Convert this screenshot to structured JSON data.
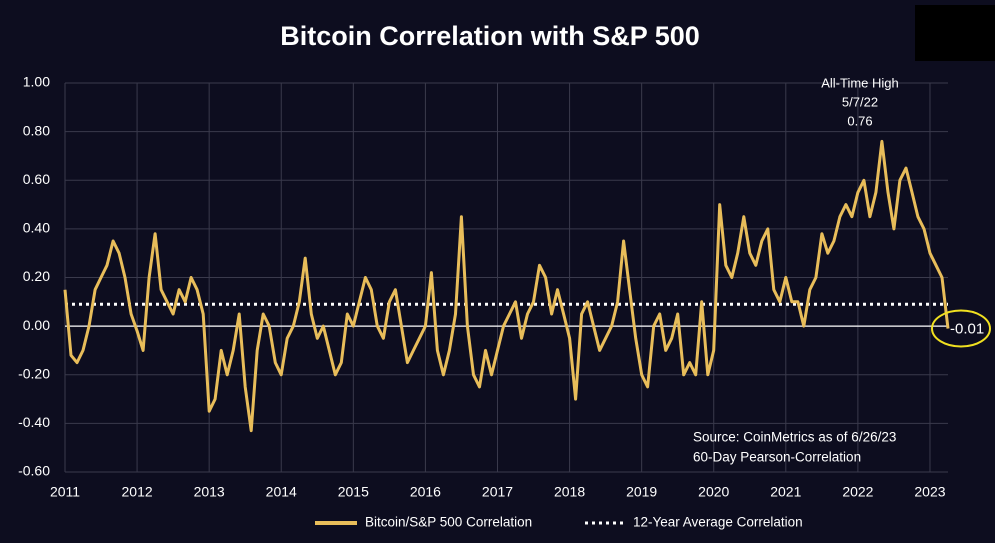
{
  "chart_data": {
    "type": "line",
    "title": "Bitcoin Correlation with S&P 500",
    "x": [
      2011,
      2011.083,
      2011.167,
      2011.25,
      2011.333,
      2011.417,
      2011.5,
      2011.583,
      2011.667,
      2011.75,
      2011.833,
      2011.917,
      2012,
      2012.083,
      2012.167,
      2012.25,
      2012.333,
      2012.417,
      2012.5,
      2012.583,
      2012.667,
      2012.75,
      2012.833,
      2012.917,
      2013,
      2013.083,
      2013.167,
      2013.25,
      2013.333,
      2013.417,
      2013.5,
      2013.583,
      2013.667,
      2013.75,
      2013.833,
      2013.917,
      2014,
      2014.083,
      2014.167,
      2014.25,
      2014.333,
      2014.417,
      2014.5,
      2014.583,
      2014.667,
      2014.75,
      2014.833,
      2014.917,
      2015,
      2015.083,
      2015.167,
      2015.25,
      2015.333,
      2015.417,
      2015.5,
      2015.583,
      2015.667,
      2015.75,
      2015.833,
      2015.917,
      2016,
      2016.083,
      2016.167,
      2016.25,
      2016.333,
      2016.417,
      2016.5,
      2016.583,
      2016.667,
      2016.75,
      2016.833,
      2016.917,
      2017,
      2017.083,
      2017.167,
      2017.25,
      2017.333,
      2017.417,
      2017.5,
      2017.583,
      2017.667,
      2017.75,
      2017.833,
      2017.917,
      2018,
      2018.083,
      2018.167,
      2018.25,
      2018.333,
      2018.417,
      2018.5,
      2018.583,
      2018.667,
      2018.75,
      2018.833,
      2018.917,
      2019,
      2019.083,
      2019.167,
      2019.25,
      2019.333,
      2019.417,
      2019.5,
      2019.583,
      2019.667,
      2019.75,
      2019.833,
      2019.917,
      2020,
      2020.083,
      2020.167,
      2020.25,
      2020.333,
      2020.417,
      2020.5,
      2020.583,
      2020.667,
      2020.75,
      2020.833,
      2020.917,
      2021,
      2021.083,
      2021.167,
      2021.25,
      2021.333,
      2021.417,
      2021.5,
      2021.583,
      2021.667,
      2021.75,
      2021.833,
      2021.917,
      2022,
      2022.083,
      2022.167,
      2022.25,
      2022.333,
      2022.417,
      2022.5,
      2022.583,
      2022.667,
      2022.75,
      2022.833,
      2022.917,
      2023,
      2023.083,
      2023.167,
      2023.25
    ],
    "series": [
      {
        "name": "Bitcoin/S&P 500 Correlation",
        "color": "#e8bd5a",
        "values": [
          0.15,
          -0.12,
          -0.15,
          -0.1,
          0.0,
          0.15,
          0.2,
          0.25,
          0.35,
          0.3,
          0.2,
          0.05,
          -0.02,
          -0.1,
          0.2,
          0.38,
          0.15,
          0.1,
          0.05,
          0.15,
          0.1,
          0.2,
          0.15,
          0.05,
          -0.35,
          -0.3,
          -0.1,
          -0.2,
          -0.1,
          0.05,
          -0.25,
          -0.43,
          -0.1,
          0.05,
          0.0,
          -0.15,
          -0.2,
          -0.05,
          0.0,
          0.1,
          0.28,
          0.05,
          -0.05,
          0.0,
          -0.1,
          -0.2,
          -0.15,
          0.05,
          0.0,
          0.1,
          0.2,
          0.15,
          0.0,
          -0.05,
          0.1,
          0.15,
          0.0,
          -0.15,
          -0.1,
          -0.05,
          0.0,
          0.22,
          -0.1,
          -0.2,
          -0.1,
          0.05,
          0.45,
          0.0,
          -0.2,
          -0.25,
          -0.1,
          -0.2,
          -0.1,
          0.0,
          0.05,
          0.1,
          -0.05,
          0.05,
          0.1,
          0.25,
          0.2,
          0.05,
          0.15,
          0.05,
          -0.05,
          -0.3,
          0.05,
          0.1,
          0.0,
          -0.1,
          -0.05,
          0.0,
          0.1,
          0.35,
          0.15,
          -0.05,
          -0.2,
          -0.25,
          0.0,
          0.05,
          -0.1,
          -0.05,
          0.05,
          -0.2,
          -0.15,
          -0.2,
          0.1,
          -0.2,
          -0.1,
          0.5,
          0.25,
          0.2,
          0.3,
          0.45,
          0.3,
          0.25,
          0.35,
          0.4,
          0.15,
          0.1,
          0.2,
          0.1,
          0.1,
          0.0,
          0.15,
          0.2,
          0.38,
          0.3,
          0.35,
          0.45,
          0.5,
          0.45,
          0.55,
          0.6,
          0.45,
          0.55,
          0.76,
          0.55,
          0.4,
          0.6,
          0.65,
          0.55,
          0.45,
          0.4,
          0.3,
          0.25,
          0.2,
          -0.01
        ]
      }
    ],
    "reference_lines": [
      {
        "name": "12-Year Average Correlation",
        "value": 0.09,
        "color": "#ffffff",
        "style": "dotted"
      }
    ],
    "zero_line": {
      "value": 0,
      "color": "#ffffff"
    },
    "xlim": [
      2011,
      2023.25
    ],
    "xticks": [
      2011,
      2012,
      2013,
      2014,
      2015,
      2016,
      2017,
      2018,
      2019,
      2020,
      2021,
      2022,
      2023
    ],
    "ylim": [
      -0.6,
      1.0
    ],
    "yticks": [
      {
        "value": -0.6,
        "label": "-0.60"
      },
      {
        "value": -0.4,
        "label": "-0.40"
      },
      {
        "value": -0.2,
        "label": "-0.20"
      },
      {
        "value": 0,
        "label": "0.00"
      },
      {
        "value": 0.2,
        "label": "0.20"
      },
      {
        "value": 0.4,
        "label": "0.40"
      },
      {
        "value": 0.6,
        "label": "0.60"
      },
      {
        "value": 0.8,
        "label": "0.80"
      },
      {
        "value": 1.0,
        "label": "1.00"
      }
    ],
    "grid": true,
    "annotation": [
      "All-Time High",
      "5/7/22",
      "0.76"
    ],
    "end_label": "-0.01",
    "source": [
      "Source: CoinMetrics as of 6/26/23",
      "60-Day Pearson-Correlation"
    ],
    "legend": "bottom"
  }
}
